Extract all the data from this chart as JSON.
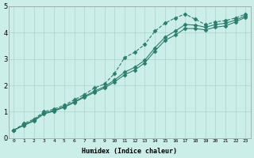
{
  "xlabel": "Humidex (Indice chaleur)",
  "bg_color": "#cceee8",
  "line_color": "#2d7d6e",
  "grid_color": "#aad4cc",
  "xlim": [
    -0.5,
    23.5
  ],
  "ylim": [
    0,
    5
  ],
  "series": {
    "line1": {
      "x": [
        0,
        1,
        2,
        3,
        4,
        5,
        6,
        7,
        8,
        9,
        10,
        11,
        12,
        13,
        14,
        15,
        16,
        17,
        18,
        19,
        20,
        21,
        22,
        23
      ],
      "y": [
        0.3,
        0.55,
        0.72,
        1.0,
        1.1,
        1.25,
        1.45,
        1.65,
        1.9,
        2.05,
        2.45,
        3.05,
        3.25,
        3.55,
        4.05,
        4.35,
        4.55,
        4.7,
        4.5,
        4.3,
        4.4,
        4.45,
        4.55,
        4.7
      ],
      "marker": "D",
      "markersize": 2.5,
      "linestyle": "--"
    },
    "line2": {
      "x": [
        0,
        1,
        2,
        3,
        4,
        5,
        6,
        7,
        8,
        9,
        10,
        11,
        12,
        13,
        14,
        15,
        16,
        17,
        18,
        19,
        20,
        21,
        22,
        23
      ],
      "y": [
        0.3,
        0.5,
        0.68,
        0.95,
        1.05,
        1.2,
        1.38,
        1.58,
        1.78,
        1.95,
        2.2,
        2.5,
        2.68,
        2.95,
        3.42,
        3.82,
        4.05,
        4.3,
        4.28,
        4.2,
        4.3,
        4.35,
        4.47,
        4.63
      ],
      "marker": "D",
      "markersize": 2.5,
      "linestyle": "-"
    },
    "line3": {
      "x": [
        0,
        1,
        2,
        3,
        4,
        5,
        6,
        7,
        8,
        9,
        10,
        11,
        12,
        13,
        14,
        15,
        16,
        17,
        18,
        19,
        20,
        21,
        22,
        23
      ],
      "y": [
        0.3,
        0.48,
        0.65,
        0.92,
        1.02,
        1.17,
        1.35,
        1.55,
        1.73,
        1.9,
        2.13,
        2.4,
        2.58,
        2.85,
        3.3,
        3.7,
        3.9,
        4.15,
        4.15,
        4.1,
        4.2,
        4.25,
        4.4,
        4.58
      ],
      "marker": "D",
      "markersize": 2.5,
      "linestyle": "-"
    }
  },
  "xtick_labels": [
    "0",
    "1",
    "2",
    "3",
    "4",
    "5",
    "6",
    "7",
    "8",
    "9",
    "10",
    "11",
    "12",
    "13",
    "14",
    "15",
    "16",
    "17",
    "18",
    "19",
    "20",
    "21",
    "22",
    "23"
  ],
  "ytick_labels": [
    "0",
    "1",
    "2",
    "3",
    "4",
    "5"
  ],
  "ytick_vals": [
    0,
    1,
    2,
    3,
    4,
    5
  ]
}
